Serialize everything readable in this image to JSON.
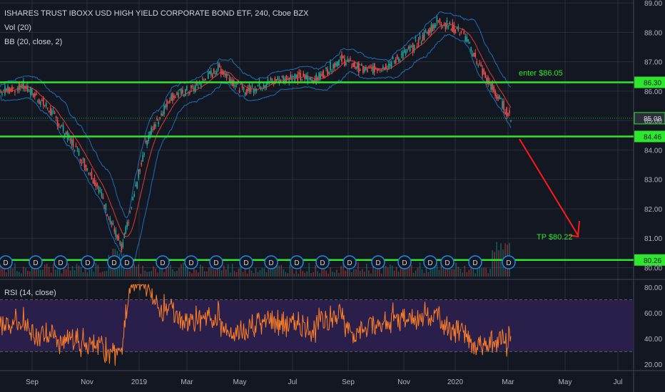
{
  "header": {
    "title": "ISHARES TRUST IBOXX USD HIGH YIELD CORPORATE BOND ETF, 240, Cboe BZX",
    "vol_label": "Vol (20)",
    "bb_label": "BB (20, close, 2)",
    "rsi_label": "RSI (14, close)"
  },
  "colors": {
    "background": "#131722",
    "grid": "#2a2e39",
    "level_line": "#2ee62e",
    "candle_up": "#26a69a",
    "candle_down": "#ef5350",
    "bb_band": "#2196f3",
    "bb_basis": "#e53935",
    "rsi_line": "#ff7f27",
    "rsi_band": "#2a1f4a",
    "arrow": "#ff1a1a",
    "dividend_marker": "#1e88e5"
  },
  "annotations": {
    "enter": "enter $86.05",
    "tp": "TP $80.22",
    "dividend_symbol": "D"
  },
  "chart_data": [
    {
      "type": "line",
      "name": "HYG price (4h candles)",
      "x_ticks": [
        "Sep",
        "Nov",
        "2019",
        "Mar",
        "May",
        "Jul",
        "Sep",
        "Nov",
        "2020",
        "Mar",
        "May",
        "Jul"
      ],
      "y_ticks": [
        "89.00",
        "88.00",
        "87.00",
        "86.00",
        "85.00",
        "84.00",
        "83.00",
        "82.00",
        "81.00",
        "80.00"
      ],
      "ylim": [
        79.6,
        89.1
      ],
      "horizontal_levels": [
        {
          "label": "86.30",
          "value": 86.3
        },
        {
          "label": "84.46",
          "value": 84.46
        },
        {
          "label": "80.26",
          "value": 80.26
        }
      ],
      "last_price": {
        "label": "85.08",
        "value": 85.08
      },
      "approx_close_path": [
        {
          "x": "Aug 2018",
          "y": 86.0
        },
        {
          "x": "Sep 2018",
          "y": 86.2
        },
        {
          "x": "Oct 2018",
          "y": 85.4
        },
        {
          "x": "Nov 2018",
          "y": 84.2
        },
        {
          "x": "Dec 2018",
          "y": 82.8
        },
        {
          "x": "Late Dec 2018",
          "y": 80.6
        },
        {
          "x": "Jan 2019",
          "y": 84.3
        },
        {
          "x": "Feb 2019",
          "y": 85.8
        },
        {
          "x": "Mar 2019",
          "y": 86.1
        },
        {
          "x": "Apr 2019",
          "y": 86.8
        },
        {
          "x": "May 2019",
          "y": 86.0
        },
        {
          "x": "Jun 2019",
          "y": 86.3
        },
        {
          "x": "Jul 2019",
          "y": 86.5
        },
        {
          "x": "Aug 2019",
          "y": 86.4
        },
        {
          "x": "Sep 2019",
          "y": 87.1
        },
        {
          "x": "Oct 2019",
          "y": 86.7
        },
        {
          "x": "Nov 2019",
          "y": 86.9
        },
        {
          "x": "Dec 2019",
          "y": 87.5
        },
        {
          "x": "Jan 2020",
          "y": 88.4
        },
        {
          "x": "Feb 2020",
          "y": 88.0
        },
        {
          "x": "Late Feb 2020",
          "y": 86.4
        },
        {
          "x": "Mar 2020",
          "y": 85.08
        }
      ]
    },
    {
      "type": "line",
      "name": "RSI (14, close)",
      "y_ticks": [
        "80.00",
        "60.00",
        "40.00",
        "20.00"
      ],
      "ylim": [
        15,
        85
      ],
      "band": [
        30,
        70
      ]
    }
  ]
}
